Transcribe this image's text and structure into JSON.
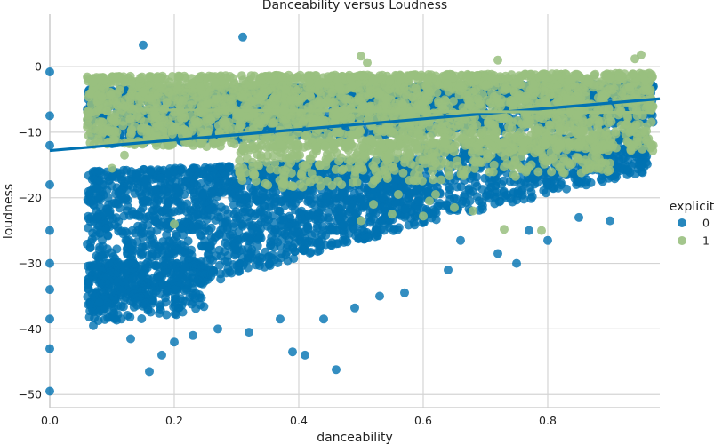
{
  "chart_data": {
    "type": "scatter",
    "title": "Danceability versus Loudness",
    "xlabel": "danceability",
    "ylabel": "loudness",
    "xlim": [
      0.0,
      0.98
    ],
    "ylim": [
      -52,
      8
    ],
    "x_ticks": [
      0.0,
      0.2,
      0.4,
      0.6,
      0.8
    ],
    "x_tick_labels": [
      "0.0",
      "0.2",
      "0.4",
      "0.6",
      "0.8"
    ],
    "y_ticks": [
      0,
      -10,
      -20,
      -30,
      -40,
      -50
    ],
    "y_tick_labels": [
      "0",
      "−10",
      "−20",
      "−30",
      "−40",
      "−50"
    ],
    "grid": true,
    "legend": {
      "title": "explicit",
      "position": "right"
    },
    "series": [
      {
        "name": "0",
        "color": "#0072b2",
        "regression": {
          "x0": 0.0,
          "y0": -12.8,
          "x1": 0.98,
          "y1": -4.9
        },
        "points": [
          [
            0.0,
            -0.8
          ],
          [
            0.0,
            -7.5
          ],
          [
            0.0,
            -12
          ],
          [
            0.0,
            -18
          ],
          [
            0.0,
            -25
          ],
          [
            0.0,
            -30
          ],
          [
            0.0,
            -34
          ],
          [
            0.0,
            -38.5
          ],
          [
            0.0,
            -43
          ],
          [
            0.0,
            -49.5
          ],
          [
            0.15,
            3.3
          ],
          [
            0.31,
            4.5
          ],
          [
            0.16,
            -46.5
          ],
          [
            0.39,
            -43.5
          ],
          [
            0.41,
            -44
          ],
          [
            0.46,
            -46.2
          ],
          [
            0.13,
            -41.5
          ],
          [
            0.18,
            -44
          ],
          [
            0.2,
            -42
          ],
          [
            0.23,
            -41
          ],
          [
            0.27,
            -40
          ],
          [
            0.32,
            -40.5
          ],
          [
            0.37,
            -38.5
          ],
          [
            0.44,
            -38.5
          ],
          [
            0.49,
            -36.8
          ],
          [
            0.53,
            -35
          ],
          [
            0.57,
            -34.5
          ],
          [
            0.64,
            -31
          ],
          [
            0.66,
            -26.5
          ],
          [
            0.72,
            -28.5
          ],
          [
            0.75,
            -30
          ],
          [
            0.77,
            -25
          ],
          [
            0.8,
            -26.5
          ],
          [
            0.85,
            -23
          ],
          [
            0.9,
            -23.5
          ],
          [
            0.07,
            -39.5
          ],
          [
            0.1,
            -38
          ],
          [
            0.09,
            -30
          ],
          [
            0.12,
            -33
          ],
          [
            0.08,
            -36
          ]
        ],
        "cloud_regions": [
          {
            "x": [
              0.06,
              0.97
            ],
            "y_bottom": [
              -3.5,
              -2.5
            ],
            "y_top": [
              -12,
              -9
            ],
            "count": 2200
          },
          {
            "x": [
              0.06,
              0.6
            ],
            "y_bottom": [
              -16,
              -14
            ],
            "y_top": [
              -38,
              -24
            ],
            "count": 1900
          },
          {
            "x": [
              0.6,
              0.96
            ],
            "y_bottom": [
              -12,
              -10
            ],
            "y_top": [
              -24,
              -16
            ],
            "count": 700
          },
          {
            "x": [
              0.06,
              0.25
            ],
            "y_bottom": [
              -30,
              -30
            ],
            "y_top": [
              -39,
              -38
            ],
            "count": 300
          }
        ]
      },
      {
        "name": "1",
        "color": "#99c07f",
        "regression": {
          "x0": 0.15,
          "y0": -6.6,
          "x1": 0.97,
          "y1": -7.0
        },
        "points": [
          [
            0.5,
            1.6
          ],
          [
            0.51,
            0.6
          ],
          [
            0.95,
            1.8
          ],
          [
            0.94,
            1.2
          ],
          [
            0.72,
            1.0
          ],
          [
            0.2,
            -24
          ],
          [
            0.73,
            -24.8
          ],
          [
            0.79,
            -25
          ],
          [
            0.56,
            -19.5
          ],
          [
            0.61,
            -20.5
          ],
          [
            0.68,
            -22
          ],
          [
            0.55,
            -22.5
          ],
          [
            0.52,
            -21
          ],
          [
            0.62,
            -19.5
          ],
          [
            0.1,
            -15.5
          ],
          [
            0.12,
            -13.5
          ],
          [
            0.19,
            -12
          ],
          [
            0.5,
            -23.5
          ],
          [
            0.65,
            -21.5
          ],
          [
            0.6,
            -22.8
          ]
        ],
        "cloud_regions": [
          {
            "x": [
              0.06,
              0.97
            ],
            "y_bottom": [
              -1.5,
              -1.0
            ],
            "y_top": [
              -12,
              -13
            ],
            "count": 2300
          },
          {
            "x": [
              0.3,
              0.9
            ],
            "y_bottom": [
              -12,
              -11
            ],
            "y_top": [
              -19,
              -16
            ],
            "count": 450
          }
        ]
      }
    ]
  }
}
